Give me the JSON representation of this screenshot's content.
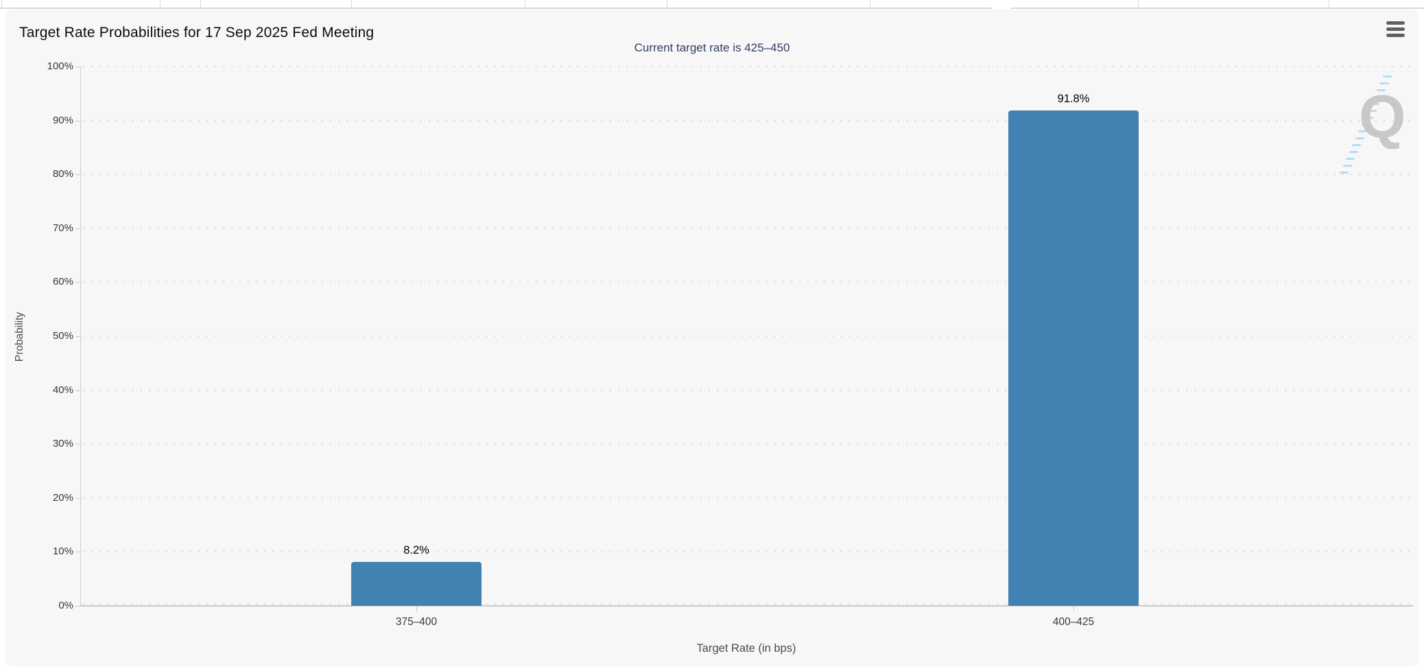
{
  "chart_data": {
    "type": "bar",
    "title": "Target Rate Probabilities for 17 Sep 2025 Fed Meeting",
    "subtitle": "Current target rate is 425–450",
    "categories": [
      "375–400",
      "400–425"
    ],
    "values": [
      8.2,
      91.8
    ],
    "data_labels": [
      "8.2%",
      "91.8%"
    ],
    "xlabel": "Target Rate (in bps)",
    "ylabel": "Probability",
    "ylim": [
      0,
      100
    ],
    "ytick_labels": [
      "0%",
      "10%",
      "20%",
      "30%",
      "40%",
      "50%",
      "60%",
      "70%",
      "80%",
      "90%",
      "100%"
    ],
    "grid": "horizontal-dotted",
    "legend_position": "none",
    "bar_color": "#4282b2"
  },
  "toolbar": {
    "menu_icon": "hamburger-icon"
  },
  "watermark": {
    "letter": "Q"
  },
  "colors": {
    "panel_bg": "#f7f7f7",
    "page_bg": "#ffffff",
    "bar": "#4282b2",
    "subtitle_text": "#2f3e63",
    "grid_dot": "#d8d8d8",
    "axis_line": "#c9c9c9",
    "watermark_gray": "#c8c8c8",
    "watermark_blue": "#b7dcf4"
  }
}
